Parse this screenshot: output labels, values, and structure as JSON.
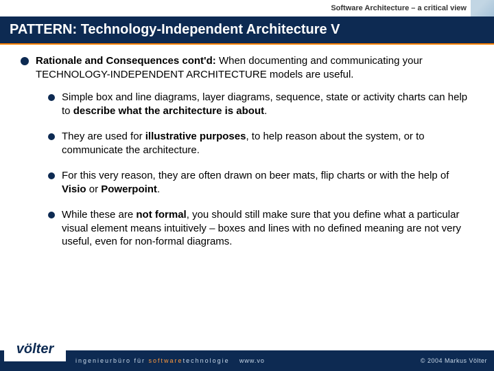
{
  "header": {
    "subtitle": "Software Architecture – a critical view",
    "title": "PATTERN: Technology-Independent Architecture V"
  },
  "main": {
    "lead_bold": "Rationale and Consequences cont'd:",
    "lead_rest": " When documenting and communicating your TECHNOLOGY-INDEPENDENT ARCHITECTURE models are useful.",
    "items": [
      {
        "pre": "Simple box and line diagrams, layer diagrams, sequence, state or activity charts can help to ",
        "bold": "describe what the architecture is about",
        "post": "."
      },
      {
        "pre": "They are used for ",
        "bold": "illustrative purposes",
        "post": ", to help reason about the system, or to communicate the architecture."
      },
      {
        "pre": "For this very reason, they are often drawn on beer mats, flip charts or with the help of ",
        "bold": "Visio",
        "mid": " or ",
        "bold2": "Powerpoint",
        "post": "."
      },
      {
        "pre": "While these are ",
        "bold": "not formal",
        "post": ", you should still make sure that you define what a particular visual element means intuitively – boxes and lines with no defined meaning are not very useful, even for non-formal diagrams."
      }
    ]
  },
  "footer": {
    "logo": "völter",
    "left_a": "ingenieurbüro für ",
    "left_b": "software",
    "left_c": "technologie",
    "mid": "www.vo",
    "right": "© 2004  Markus Völter"
  },
  "colors": {
    "title_bg": "#0d2a52",
    "accent": "#ff7f00"
  }
}
